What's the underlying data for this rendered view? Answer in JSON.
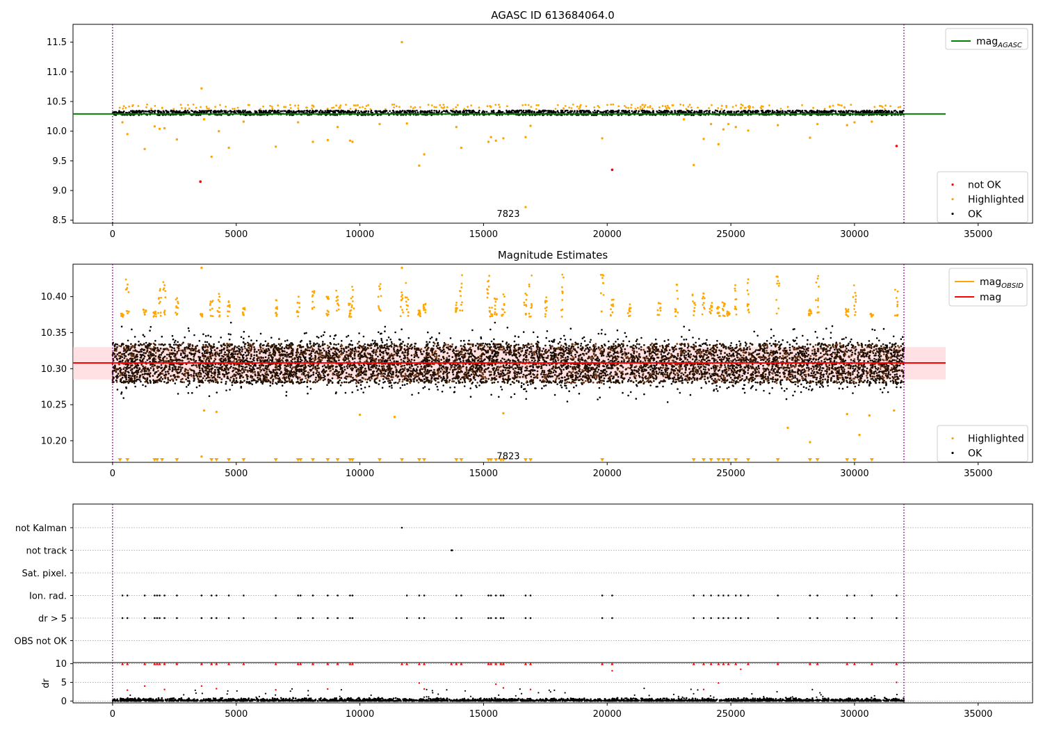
{
  "chart_data": [
    {
      "type": "scatter",
      "title": "AGASC ID 613684064.0",
      "xlabel": "",
      "ylabel": "",
      "xlim": [
        -1600,
        37200
      ],
      "ylim": [
        8.45,
        11.8
      ],
      "x_ticks": [
        0,
        5000,
        10000,
        15000,
        20000,
        25000,
        30000,
        35000
      ],
      "y_ticks": [
        8.5,
        9.0,
        9.5,
        10.0,
        10.5,
        11.0,
        11.5
      ],
      "y_tick_decimals": 1,
      "annotation": {
        "text": "7823",
        "x": 16000,
        "y": 8.6
      },
      "observation_boundaries": [
        0,
        32000
      ],
      "reference_lines": [
        {
          "name": "mag_AGASC",
          "y": 10.29,
          "color": "#008000"
        }
      ],
      "legends": [
        {
          "placement": "upper right",
          "entries": [
            {
              "label": "mag",
              "sub": "AGASC",
              "marker": "line",
              "color": "#008000"
            }
          ]
        },
        {
          "placement": "lower right",
          "entries": [
            {
              "label": "not OK",
              "marker": "dot",
              "color": "#ff0000"
            },
            {
              "label": "Highlighted",
              "marker": "dot",
              "color": "#ffa500"
            },
            {
              "label": "OK",
              "marker": "dot",
              "color": "#000000"
            }
          ]
        }
      ],
      "series": [
        {
          "name": "not OK",
          "color": "#ff0000",
          "points": [
            [
              3550,
              9.15
            ],
            [
              20200,
              9.35
            ],
            [
              31700,
              9.75
            ]
          ]
        },
        {
          "name": "Highlighted",
          "color": "#ffa500",
          "points": [
            [
              3600,
              10.72
            ],
            [
              11700,
              11.5
            ],
            [
              400,
              10.15
            ],
            [
              600,
              9.95
            ],
            [
              1300,
              9.7
            ],
            [
              1700,
              10.08
            ],
            [
              1900,
              10.04
            ],
            [
              2100,
              10.05
            ],
            [
              2600,
              9.86
            ],
            [
              3700,
              10.2
            ],
            [
              4000,
              9.57
            ],
            [
              4300,
              10.0
            ],
            [
              4700,
              9.72
            ],
            [
              5300,
              10.16
            ],
            [
              6600,
              9.74
            ],
            [
              7500,
              10.15
            ],
            [
              8100,
              9.82
            ],
            [
              8700,
              9.85
            ],
            [
              9100,
              10.07
            ],
            [
              9600,
              9.84
            ],
            [
              9700,
              9.82
            ],
            [
              10800,
              10.12
            ],
            [
              11900,
              10.13
            ],
            [
              12400,
              9.42
            ],
            [
              12600,
              9.61
            ],
            [
              13900,
              10.07
            ],
            [
              14100,
              9.72
            ],
            [
              15200,
              9.82
            ],
            [
              15300,
              9.9
            ],
            [
              15500,
              9.84
            ],
            [
              15800,
              9.88
            ],
            [
              16700,
              9.9
            ],
            [
              16900,
              10.09
            ],
            [
              16700,
              8.72
            ],
            [
              19800,
              9.88
            ],
            [
              23100,
              10.2
            ],
            [
              23500,
              9.43
            ],
            [
              23900,
              9.87
            ],
            [
              24200,
              10.12
            ],
            [
              24500,
              9.78
            ],
            [
              24700,
              10.03
            ],
            [
              24900,
              10.12
            ],
            [
              25200,
              10.07
            ],
            [
              25700,
              10.01
            ],
            [
              26900,
              10.1
            ],
            [
              28200,
              9.89
            ],
            [
              28500,
              10.12
            ],
            [
              29700,
              10.1
            ],
            [
              30000,
              10.15
            ],
            [
              30700,
              10.16
            ]
          ]
        },
        {
          "name": "OK",
          "color": "#000000",
          "band": {
            "x0": 0,
            "x1": 32000,
            "ymin": 10.27,
            "ymax": 10.35
          }
        }
      ]
    },
    {
      "type": "scatter",
      "title": "Magnitude Estimates",
      "xlabel": "",
      "ylabel": "",
      "xlim": [
        -1600,
        37200
      ],
      "ylim": [
        10.17,
        10.445
      ],
      "x_ticks": [
        0,
        5000,
        10000,
        15000,
        20000,
        25000,
        30000,
        35000
      ],
      "y_ticks": [
        10.2,
        10.25,
        10.3,
        10.35,
        10.4
      ],
      "y_tick_decimals": 2,
      "annotation": {
        "text": "7823",
        "x": 16000,
        "y": 10.178
      },
      "observation_boundaries": [
        0,
        32000
      ],
      "reference_lines": [
        {
          "name": "mag",
          "y": 10.308,
          "color": "#ff0000"
        }
      ],
      "shaded_band": {
        "ymin": 10.285,
        "ymax": 10.33,
        "color": "#ffccd1"
      },
      "legends": [
        {
          "placement": "upper right",
          "entries": [
            {
              "label": "mag",
              "sub": "OBSID",
              "marker": "line",
              "color": "#ffa500"
            },
            {
              "label": "mag",
              "marker": "line",
              "color": "#ff0000"
            }
          ]
        },
        {
          "placement": "lower right",
          "entries": [
            {
              "label": "Highlighted",
              "marker": "dot",
              "color": "#ffa500"
            },
            {
              "label": "OK",
              "marker": "dot",
              "color": "#000000"
            }
          ]
        }
      ],
      "highlight_x": [
        400,
        600,
        1300,
        1700,
        1900,
        2100,
        2600,
        3600,
        4000,
        4300,
        4700,
        5300,
        6600,
        7500,
        8100,
        8700,
        9100,
        9600,
        9700,
        10800,
        11700,
        11900,
        12400,
        12600,
        13900,
        14100,
        15200,
        15300,
        15500,
        15800,
        16700,
        16900,
        17500,
        18200,
        19800,
        20200,
        20900,
        22100,
        22800,
        23500,
        23900,
        24200,
        24500,
        24700,
        24900,
        25200,
        25700,
        26900,
        28200,
        28500,
        29700,
        30000,
        30700,
        31700
      ],
      "below_axis_x": [
        300,
        600,
        1700,
        1800,
        2000,
        2600,
        4000,
        4200,
        4700,
        5300,
        6600,
        7500,
        7600,
        8100,
        8700,
        9100,
        9600,
        9700,
        10800,
        11700,
        12400,
        12600,
        13900,
        14100,
        15200,
        15300,
        15500,
        15700,
        15800,
        16700,
        16900,
        19800,
        23500,
        23900,
        24200,
        24500,
        24700,
        24900,
        25200,
        25700,
        26900,
        28200,
        28500,
        29700,
        30000,
        30700
      ],
      "series": [
        {
          "name": "Highlighted",
          "color": "#ffa500",
          "points": [
            [
              3600,
              10.44
            ],
            [
              11700,
              10.44
            ],
            [
              3600,
              10.178
            ],
            [
              27300,
              10.218
            ],
            [
              28200,
              10.198
            ],
            [
              30200,
              10.208
            ],
            [
              29700,
              10.237
            ],
            [
              10000,
              10.236
            ],
            [
              11400,
              10.233
            ],
            [
              15800,
              10.238
            ],
            [
              4200,
              10.24
            ],
            [
              30600,
              10.235
            ],
            [
              31600,
              10.242
            ],
            [
              3700,
              10.242
            ]
          ]
        },
        {
          "name": "OK",
          "color": "#000000",
          "band": {
            "x0": 0,
            "x1": 32000,
            "ymin": 10.245,
            "ymax": 10.37,
            "core_min": 10.28,
            "core_max": 10.335
          }
        }
      ]
    },
    {
      "type": "scatter",
      "title": "",
      "xlabel": "",
      "ylabel": "",
      "xlim": [
        -1600,
        37200
      ],
      "categories": [
        "not Kalman",
        "not track",
        "Sat. pixel.",
        "Ion. rad.",
        "dr > 5",
        "OBS not OK"
      ],
      "observation_boundaries": [
        0,
        32000
      ],
      "flag_points": {
        "not Kalman": [
          11700
        ],
        "not track": [
          13700
        ],
        "Sat. pixel.": [],
        "Ion. rad.": [
          400,
          600,
          1300,
          1700,
          1800,
          1900,
          2100,
          2600,
          3600,
          4000,
          4200,
          4700,
          5300,
          6600,
          7500,
          7600,
          8100,
          8700,
          9100,
          9600,
          9700,
          11900,
          12400,
          12600,
          13900,
          14100,
          15200,
          15300,
          15500,
          15700,
          15800,
          16700,
          16900,
          19800,
          20200,
          23500,
          23900,
          24200,
          24500,
          24700,
          24900,
          25200,
          25400,
          25700,
          26900,
          28200,
          28500,
          29700,
          30000,
          30700,
          31700
        ],
        "dr > 5": [
          400,
          600,
          1300,
          1700,
          1800,
          1900,
          2100,
          2600,
          3600,
          4000,
          4200,
          4700,
          5300,
          6600,
          7500,
          7600,
          8100,
          8700,
          9100,
          9600,
          9700,
          11900,
          12400,
          12600,
          13900,
          14100,
          15200,
          15300,
          15500,
          15700,
          15800,
          16700,
          16900,
          19800,
          20200,
          23500,
          23900,
          24200,
          24500,
          24700,
          24900,
          25200,
          25400,
          25700,
          26900,
          28200,
          28500,
          29700,
          30000,
          30700,
          31700
        ],
        "OBS not OK": []
      }
    },
    {
      "type": "scatter",
      "title": "",
      "xlabel": "",
      "ylabel": "dr",
      "xlim": [
        -1600,
        37200
      ],
      "ylim": [
        -0.5,
        10.3
      ],
      "x_ticks": [
        0,
        5000,
        10000,
        15000,
        20000,
        25000,
        30000,
        35000
      ],
      "y_ticks": [
        0,
        5,
        10
      ],
      "y_tick_decimals": 0,
      "observation_boundaries": [
        0,
        32000
      ],
      "clipped_at": 10,
      "clipped_x": [
        400,
        600,
        1300,
        1700,
        1800,
        1900,
        2100,
        2600,
        3600,
        4000,
        4200,
        4700,
        5300,
        6600,
        7500,
        7600,
        8100,
        8700,
        9100,
        9600,
        9700,
        11700,
        11900,
        12400,
        12600,
        13700,
        13900,
        14100,
        15200,
        15300,
        15500,
        15700,
        15800,
        16700,
        16900,
        19800,
        20200,
        23500,
        23900,
        24200,
        24500,
        24700,
        24900,
        25200,
        25700,
        26900,
        28200,
        28500,
        29700,
        30000,
        30700,
        31700
      ],
      "series": [
        {
          "name": "dr > 5",
          "color": "#ff0000",
          "points": [
            [
              600,
              2.9
            ],
            [
              1300,
              4.0
            ],
            [
              2100,
              3.1
            ],
            [
              3600,
              4.0
            ],
            [
              4200,
              3.3
            ],
            [
              6600,
              3.0
            ],
            [
              8700,
              3.2
            ],
            [
              12400,
              4.8
            ],
            [
              12600,
              3.2
            ],
            [
              15500,
              4.5
            ],
            [
              15800,
              3.5
            ],
            [
              16900,
              3.1
            ],
            [
              20200,
              8.1
            ],
            [
              23900,
              3.1
            ],
            [
              24500,
              4.8
            ],
            [
              25400,
              8.5
            ],
            [
              31700,
              5.0
            ]
          ]
        },
        {
          "name": "OK",
          "color": "#000000",
          "band": {
            "x0": 0,
            "x1": 32000,
            "ymin": 0,
            "ymax": 0.9
          }
        }
      ]
    }
  ]
}
